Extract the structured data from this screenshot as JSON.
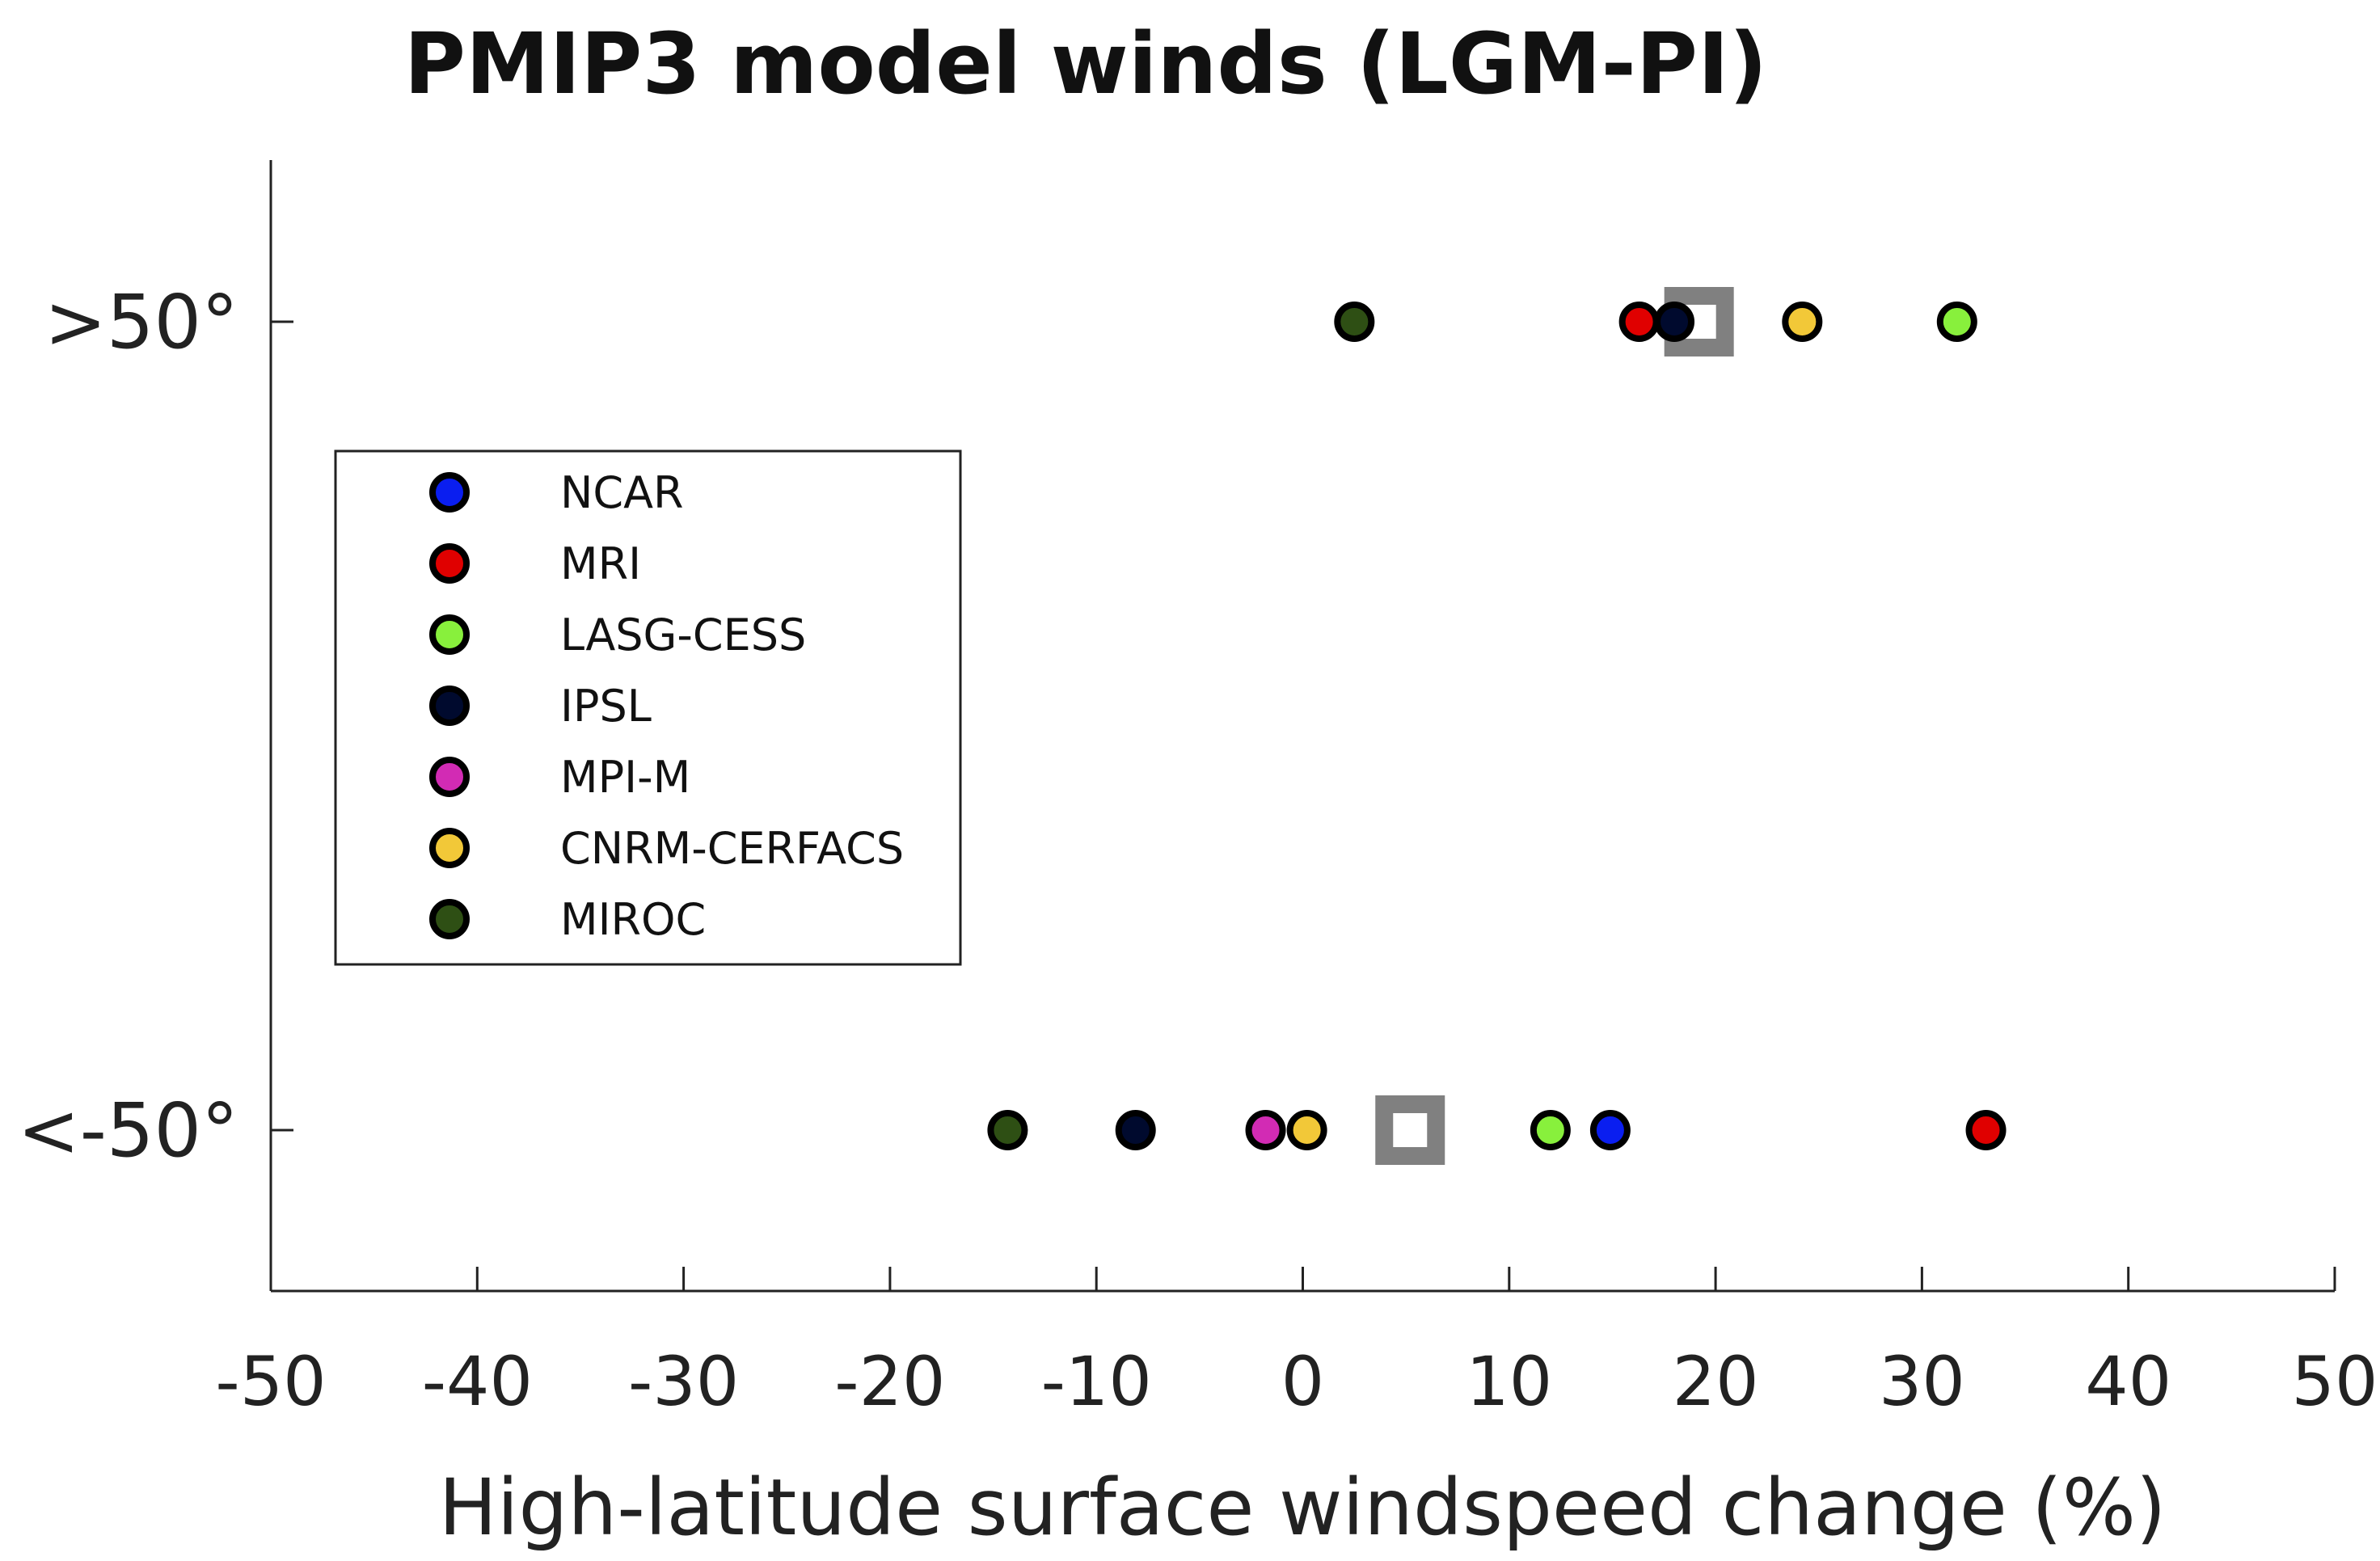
{
  "chart_data": {
    "type": "scatter",
    "title": "PMIP3 model winds (LGM-PI)",
    "xlabel": "High-latitude surface windspeed change (%)",
    "ylabel": "",
    "xlim": [
      -50,
      50
    ],
    "x_ticks": [
      -50,
      -40,
      -30,
      -20,
      -10,
      0,
      10,
      20,
      30,
      40,
      50
    ],
    "categories": [
      ">50°",
      "<-50°"
    ],
    "legend_position": "left",
    "grid": false,
    "series": [
      {
        "name": "NCAR",
        "color": "#0a1ef0",
        "values": [
          null,
          14.9
        ]
      },
      {
        "name": "MRI",
        "color": "#e00000",
        "values": [
          16.3,
          33.1
        ]
      },
      {
        "name": "LASG-CESS",
        "color": "#88f03c",
        "values": [
          31.7,
          12
        ]
      },
      {
        "name": "IPSL",
        "color": "#000a2e",
        "values": [
          18,
          -8.1
        ]
      },
      {
        "name": "MPI-M",
        "color": "#d22bb4",
        "values": [
          null,
          -1.8
        ]
      },
      {
        "name": "CNRM-CERFACS",
        "color": "#f2c838",
        "values": [
          24.2,
          0.2
        ]
      },
      {
        "name": "MIROC",
        "color": "#2e4f14",
        "values": [
          2.5,
          -14.3
        ]
      }
    ],
    "mean_markers": {
      "color": "#808080",
      "values": [
        19.2,
        5.2
      ]
    }
  }
}
